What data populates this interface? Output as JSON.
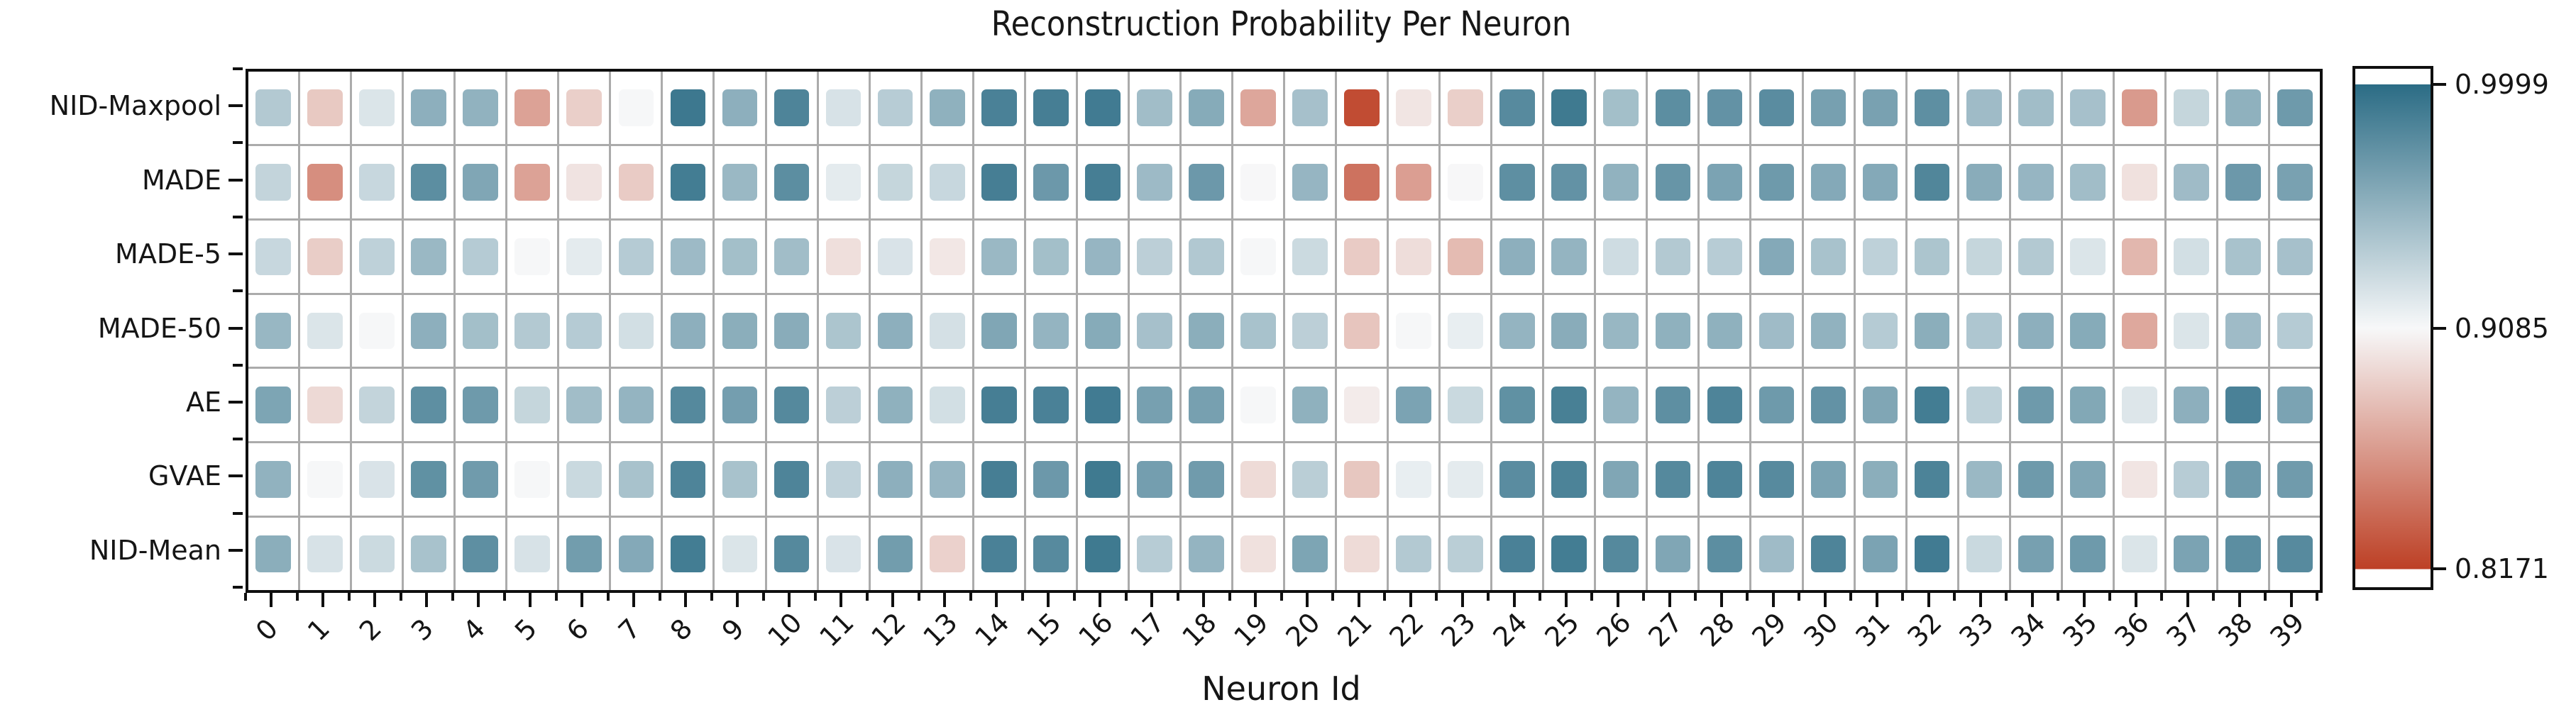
{
  "chart_data": {
    "type": "heatmap",
    "title": "Reconstruction Probability Per Neuron",
    "xlabel": "Neuron Id",
    "rows": [
      "NID-Maxpool",
      "MADE",
      "MADE-5",
      "MADE-50",
      "AE",
      "GVAE",
      "NID-Mean"
    ],
    "columns": [
      "0",
      "1",
      "2",
      "3",
      "4",
      "5",
      "6",
      "7",
      "8",
      "9",
      "10",
      "11",
      "12",
      "13",
      "14",
      "15",
      "16",
      "17",
      "18",
      "19",
      "20",
      "21",
      "22",
      "23",
      "24",
      "25",
      "26",
      "27",
      "28",
      "29",
      "30",
      "31",
      "32",
      "33",
      "34",
      "35",
      "36",
      "37",
      "38",
      "39"
    ],
    "values": [
      [
        0.939,
        0.885,
        0.921,
        0.956,
        0.954,
        0.866,
        0.888,
        0.909,
        0.992,
        0.956,
        0.984,
        0.923,
        0.937,
        0.955,
        0.986,
        0.988,
        0.99,
        0.947,
        0.959,
        0.868,
        0.945,
        0.823,
        0.899,
        0.888,
        0.98,
        0.991,
        0.946,
        0.978,
        0.975,
        0.979,
        0.966,
        0.965,
        0.977,
        0.948,
        0.947,
        0.945,
        0.862,
        0.931,
        0.955,
        0.97
      ],
      [
        0.932,
        0.856,
        0.93,
        0.978,
        0.962,
        0.866,
        0.898,
        0.886,
        0.989,
        0.95,
        0.978,
        0.917,
        0.931,
        0.93,
        0.988,
        0.971,
        0.988,
        0.949,
        0.971,
        0.908,
        0.952,
        0.842,
        0.864,
        0.908,
        0.977,
        0.975,
        0.954,
        0.973,
        0.964,
        0.97,
        0.96,
        0.96,
        0.983,
        0.958,
        0.952,
        0.947,
        0.897,
        0.948,
        0.971,
        0.965
      ],
      [
        0.93,
        0.887,
        0.934,
        0.95,
        0.938,
        0.909,
        0.917,
        0.938,
        0.949,
        0.946,
        0.947,
        0.896,
        0.922,
        0.9,
        0.95,
        0.946,
        0.952,
        0.935,
        0.94,
        0.909,
        0.928,
        0.886,
        0.895,
        0.878,
        0.956,
        0.953,
        0.927,
        0.939,
        0.937,
        0.96,
        0.944,
        0.934,
        0.942,
        0.931,
        0.939,
        0.921,
        0.876,
        0.925,
        0.944,
        0.945
      ],
      [
        0.951,
        0.921,
        0.909,
        0.956,
        0.946,
        0.939,
        0.938,
        0.925,
        0.956,
        0.957,
        0.958,
        0.942,
        0.956,
        0.924,
        0.962,
        0.953,
        0.959,
        0.945,
        0.957,
        0.944,
        0.935,
        0.883,
        0.909,
        0.915,
        0.953,
        0.958,
        0.951,
        0.955,
        0.955,
        0.948,
        0.954,
        0.938,
        0.957,
        0.941,
        0.956,
        0.959,
        0.869,
        0.921,
        0.948,
        0.938
      ],
      [
        0.963,
        0.893,
        0.932,
        0.977,
        0.97,
        0.931,
        0.947,
        0.953,
        0.981,
        0.967,
        0.981,
        0.935,
        0.955,
        0.925,
        0.988,
        0.986,
        0.99,
        0.966,
        0.966,
        0.909,
        0.955,
        0.902,
        0.964,
        0.929,
        0.976,
        0.987,
        0.953,
        0.977,
        0.984,
        0.97,
        0.975,
        0.962,
        0.989,
        0.934,
        0.97,
        0.961,
        0.92,
        0.956,
        0.986,
        0.964
      ],
      [
        0.954,
        0.909,
        0.922,
        0.976,
        0.969,
        0.909,
        0.929,
        0.944,
        0.984,
        0.944,
        0.984,
        0.933,
        0.956,
        0.952,
        0.988,
        0.971,
        0.991,
        0.967,
        0.969,
        0.894,
        0.936,
        0.884,
        0.915,
        0.917,
        0.979,
        0.985,
        0.962,
        0.981,
        0.984,
        0.98,
        0.964,
        0.957,
        0.985,
        0.95,
        0.97,
        0.962,
        0.899,
        0.937,
        0.97,
        0.969
      ],
      [
        0.957,
        0.923,
        0.928,
        0.944,
        0.977,
        0.923,
        0.968,
        0.96,
        0.989,
        0.921,
        0.981,
        0.922,
        0.968,
        0.889,
        0.986,
        0.98,
        0.991,
        0.937,
        0.953,
        0.897,
        0.963,
        0.894,
        0.939,
        0.936,
        0.986,
        0.989,
        0.981,
        0.962,
        0.978,
        0.948,
        0.984,
        0.964,
        0.99,
        0.929,
        0.966,
        0.97,
        0.921,
        0.964,
        0.978,
        0.98
      ]
    ],
    "value_range": {
      "min": 0.8171,
      "mid": 0.9085,
      "max": 0.9999
    },
    "colorbar": {
      "tick_labels": [
        "0.9999",
        "0.9085",
        "0.8171"
      ],
      "tick_positions": [
        0.03,
        0.5,
        0.965
      ]
    },
    "colors": {
      "high": "#2b6c85",
      "mid": "#f7f8f9",
      "low": "#bd4025",
      "gridline": "#ababab",
      "frame": "#0f0f0f",
      "background": "#ffffff"
    },
    "legend_position": "right-colorbar",
    "grid": true
  }
}
